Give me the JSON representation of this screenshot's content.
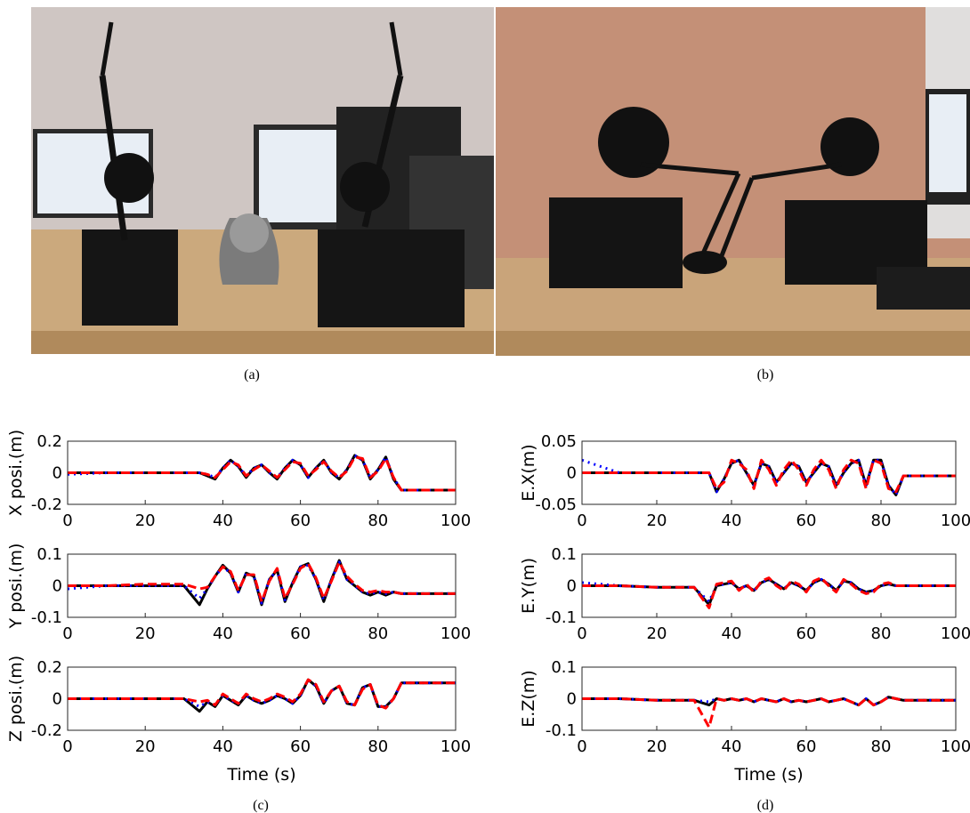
{
  "photos": [
    {
      "caption": "(a)"
    },
    {
      "caption": "(b)"
    }
  ],
  "panel_captions": [
    "(c)",
    "(d)"
  ],
  "chart_data": [
    {
      "type": "line",
      "ylabel": "X posi.(m)",
      "xlim": [
        0,
        100
      ],
      "xticks": [
        0,
        20,
        40,
        60,
        80,
        100
      ],
      "ylim": [
        -0.2,
        0.2
      ],
      "yticks": [
        -0.2,
        0,
        0.2
      ],
      "x": [
        0,
        10,
        20,
        30,
        34,
        36,
        38,
        40,
        42,
        44,
        46,
        48,
        50,
        52,
        54,
        56,
        58,
        60,
        62,
        64,
        66,
        68,
        70,
        72,
        74,
        76,
        78,
        80,
        82,
        84,
        86,
        90,
        100
      ],
      "series": [
        {
          "color": "#000000",
          "values": [
            0,
            0,
            0,
            0,
            0,
            -0.02,
            -0.04,
            0.03,
            0.08,
            0.04,
            -0.03,
            0.03,
            0.05,
            0,
            -0.04,
            0.03,
            0.08,
            0.05,
            -0.03,
            0.03,
            0.08,
            0,
            -0.04,
            0.02,
            0.11,
            0.08,
            -0.04,
            0.02,
            0.1,
            -0.04,
            -0.11,
            -0.11,
            -0.11
          ]
        },
        {
          "color": "#0000ff",
          "values": [
            -0.01,
            0,
            0,
            0,
            0,
            -0.01,
            -0.03,
            0.03,
            0.08,
            0.04,
            -0.02,
            0.03,
            0.05,
            0,
            -0.03,
            0.03,
            0.08,
            0.05,
            -0.03,
            0.03,
            0.08,
            0,
            -0.03,
            0.02,
            0.11,
            0.08,
            -0.03,
            0.02,
            0.1,
            -0.03,
            -0.11,
            -0.11,
            -0.11
          ]
        },
        {
          "color": "#ff0000",
          "values": [
            0,
            0,
            0,
            0,
            0,
            -0.01,
            -0.03,
            0.02,
            0.07,
            0.05,
            -0.02,
            0.02,
            0.05,
            0.01,
            -0.03,
            0.02,
            0.07,
            0.06,
            -0.02,
            0.02,
            0.07,
            0.01,
            -0.03,
            0.01,
            0.1,
            0.09,
            -0.03,
            0.01,
            0.09,
            -0.03,
            -0.11,
            -0.11,
            -0.11
          ]
        }
      ]
    },
    {
      "type": "line",
      "ylabel": "Y posi.(m)",
      "xlim": [
        0,
        100
      ],
      "xticks": [
        0,
        20,
        40,
        60,
        80,
        100
      ],
      "ylim": [
        -0.1,
        0.1
      ],
      "yticks": [
        -0.1,
        0,
        0.1
      ],
      "x": [
        0,
        10,
        20,
        30,
        34,
        36,
        38,
        40,
        42,
        44,
        46,
        48,
        50,
        52,
        54,
        56,
        58,
        60,
        62,
        64,
        66,
        68,
        70,
        72,
        74,
        76,
        78,
        80,
        82,
        84,
        86,
        90,
        100
      ],
      "series": [
        {
          "color": "#000000",
          "values": [
            0,
            0,
            0,
            0,
            -0.06,
            -0.01,
            0.03,
            0.065,
            0.04,
            -0.02,
            0.04,
            0.03,
            -0.06,
            0.02,
            0.05,
            -0.05,
            0.01,
            0.06,
            0.07,
            0.02,
            -0.05,
            0.02,
            0.08,
            0.02,
            0,
            -0.02,
            -0.03,
            -0.02,
            -0.03,
            -0.02,
            -0.025,
            -0.025,
            -0.025
          ]
        },
        {
          "color": "#0000ff",
          "values": [
            -0.01,
            0,
            0,
            0,
            -0.04,
            -0.01,
            0.03,
            0.06,
            0.04,
            -0.02,
            0.04,
            0.03,
            -0.055,
            0.02,
            0.05,
            -0.045,
            0.01,
            0.06,
            0.065,
            0.02,
            -0.045,
            0.02,
            0.075,
            0.02,
            0,
            -0.02,
            -0.025,
            -0.02,
            -0.025,
            -0.02,
            -0.025,
            -0.025,
            -0.025
          ]
        },
        {
          "color": "#ff0000",
          "values": [
            0,
            0,
            0.005,
            0.005,
            -0.01,
            -0.005,
            0.03,
            0.06,
            0.045,
            -0.015,
            0.035,
            0.035,
            -0.05,
            0.015,
            0.055,
            -0.04,
            0.005,
            0.055,
            0.07,
            0.025,
            -0.04,
            0.015,
            0.075,
            0.03,
            0.005,
            -0.015,
            -0.02,
            -0.015,
            -0.02,
            -0.02,
            -0.025,
            -0.025,
            -0.025
          ]
        }
      ]
    },
    {
      "type": "line",
      "ylabel": "Z posi.(m)",
      "xlabel": "Time (s)",
      "xlim": [
        0,
        100
      ],
      "xticks": [
        0,
        20,
        40,
        60,
        80,
        100
      ],
      "ylim": [
        -0.2,
        0.2
      ],
      "yticks": [
        -0.2,
        0,
        0.2
      ],
      "x": [
        0,
        10,
        20,
        30,
        34,
        36,
        38,
        40,
        42,
        44,
        46,
        48,
        50,
        52,
        54,
        56,
        58,
        60,
        62,
        64,
        66,
        68,
        70,
        72,
        74,
        76,
        78,
        80,
        82,
        84,
        86,
        90,
        100
      ],
      "series": [
        {
          "color": "#000000",
          "values": [
            0,
            0,
            0,
            0,
            -0.08,
            -0.02,
            -0.05,
            0.02,
            -0.01,
            -0.04,
            0.02,
            -0.01,
            -0.03,
            -0.01,
            0.02,
            0,
            -0.03,
            0.02,
            0.12,
            0.08,
            -0.03,
            0.05,
            0.08,
            -0.03,
            -0.04,
            0.07,
            0.09,
            -0.05,
            -0.05,
            0,
            0.1,
            0.1,
            0.1
          ]
        },
        {
          "color": "#0000ff",
          "values": [
            0,
            0,
            0,
            0,
            -0.05,
            -0.02,
            -0.04,
            0.02,
            -0.01,
            -0.03,
            0.02,
            -0.01,
            -0.03,
            -0.01,
            0.02,
            0,
            -0.03,
            0.02,
            0.12,
            0.08,
            -0.03,
            0.05,
            0.08,
            -0.03,
            -0.04,
            0.07,
            0.09,
            -0.05,
            -0.05,
            0,
            0.1,
            0.1,
            0.1
          ]
        },
        {
          "color": "#ff0000",
          "values": [
            0,
            0,
            0,
            0,
            -0.02,
            -0.01,
            -0.04,
            0.03,
            0,
            -0.03,
            0.03,
            0,
            -0.02,
            0,
            0.03,
            0.01,
            -0.02,
            0.03,
            0.12,
            0.09,
            -0.02,
            0.05,
            0.08,
            -0.02,
            -0.04,
            0.06,
            0.09,
            -0.04,
            -0.06,
            0,
            0.1,
            0.1,
            0.1
          ]
        }
      ]
    },
    {
      "type": "line",
      "ylabel": "E.X(m)",
      "xlim": [
        0,
        100
      ],
      "xticks": [
        0,
        20,
        40,
        60,
        80,
        100
      ],
      "ylim": [
        -0.05,
        0.05
      ],
      "yticks": [
        -0.05,
        0,
        0.05
      ],
      "x": [
        0,
        10,
        20,
        30,
        34,
        36,
        38,
        40,
        42,
        44,
        46,
        48,
        50,
        52,
        54,
        56,
        58,
        60,
        62,
        64,
        66,
        68,
        70,
        72,
        74,
        76,
        78,
        80,
        82,
        84,
        86,
        90,
        100
      ],
      "series": [
        {
          "color": "#000000",
          "values": [
            0,
            0,
            0,
            0,
            0,
            -0.03,
            -0.01,
            0.015,
            0.02,
            0,
            -0.02,
            0.015,
            0.01,
            -0.015,
            0,
            0.015,
            0.01,
            -0.015,
            0,
            0.015,
            0.01,
            -0.02,
            0,
            0.015,
            0.02,
            -0.02,
            0.02,
            0.02,
            -0.02,
            -0.035,
            -0.005,
            -0.005,
            -0.005
          ]
        },
        {
          "color": "#0000ff",
          "values": [
            0.02,
            0,
            0,
            0,
            0,
            -0.03,
            -0.01,
            0.015,
            0.02,
            0,
            -0.02,
            0.015,
            0.01,
            -0.015,
            0,
            0.015,
            0.01,
            -0.015,
            0,
            0.015,
            0.01,
            -0.02,
            0,
            0.015,
            0.02,
            -0.02,
            0.02,
            0.02,
            -0.02,
            -0.035,
            -0.005,
            -0.005,
            -0.005
          ]
        },
        {
          "color": "#ff0000",
          "values": [
            0,
            0,
            0,
            0,
            0,
            -0.025,
            -0.015,
            0.02,
            0.015,
            0.005,
            -0.025,
            0.02,
            0.005,
            -0.02,
            0.005,
            0.02,
            0.005,
            -0.02,
            0.005,
            0.02,
            0.005,
            -0.025,
            0.005,
            0.02,
            0.015,
            -0.025,
            0.02,
            0.015,
            -0.025,
            -0.03,
            -0.005,
            -0.005,
            -0.005
          ]
        }
      ]
    },
    {
      "type": "line",
      "ylabel": "E.Y(m)",
      "xlim": [
        0,
        100
      ],
      "xticks": [
        0,
        20,
        40,
        60,
        80,
        100
      ],
      "ylim": [
        -0.1,
        0.1
      ],
      "yticks": [
        -0.1,
        0,
        0.1
      ],
      "x": [
        0,
        10,
        20,
        30,
        34,
        36,
        38,
        40,
        42,
        44,
        46,
        48,
        50,
        52,
        54,
        56,
        58,
        60,
        62,
        64,
        66,
        68,
        70,
        72,
        74,
        76,
        78,
        80,
        82,
        84,
        86,
        90,
        100
      ],
      "series": [
        {
          "color": "#000000",
          "values": [
            0,
            0,
            -0.005,
            -0.005,
            -0.06,
            0,
            0.005,
            0.01,
            -0.01,
            0,
            -0.015,
            0.01,
            0.02,
            0.005,
            -0.01,
            0.01,
            0,
            -0.015,
            0.01,
            0.02,
            0.005,
            -0.015,
            0.015,
            0.01,
            -0.01,
            -0.02,
            -0.015,
            0,
            0.005,
            0,
            0,
            0,
            0
          ]
        },
        {
          "color": "#0000ff",
          "values": [
            0.01,
            0,
            -0.005,
            -0.005,
            -0.05,
            0,
            0.005,
            0.01,
            -0.01,
            0,
            -0.015,
            0.01,
            0.02,
            0.005,
            -0.01,
            0.01,
            0,
            -0.015,
            0.01,
            0.02,
            0.005,
            -0.015,
            0.015,
            0.01,
            -0.01,
            -0.02,
            -0.015,
            0,
            0.005,
            0,
            0,
            0,
            0
          ]
        },
        {
          "color": "#ff0000",
          "values": [
            0,
            0,
            -0.005,
            -0.005,
            -0.07,
            0.005,
            0.01,
            0.015,
            -0.015,
            0.005,
            -0.02,
            0.015,
            0.025,
            0,
            -0.015,
            0.015,
            0.005,
            -0.02,
            0.015,
            0.025,
            0,
            -0.02,
            0.02,
            0.005,
            -0.015,
            -0.025,
            -0.02,
            0.005,
            0.01,
            0,
            0,
            0,
            0
          ]
        }
      ]
    },
    {
      "type": "line",
      "ylabel": "E.Z(m)",
      "xlabel": "Time (s)",
      "xlim": [
        0,
        100
      ],
      "xticks": [
        0,
        20,
        40,
        60,
        80,
        100
      ],
      "ylim": [
        -0.1,
        0.1
      ],
      "yticks": [
        -0.1,
        0,
        0.1
      ],
      "x": [
        0,
        10,
        20,
        30,
        34,
        36,
        38,
        40,
        42,
        44,
        46,
        48,
        50,
        52,
        54,
        56,
        58,
        60,
        62,
        64,
        66,
        68,
        70,
        72,
        74,
        76,
        78,
        80,
        82,
        84,
        86,
        90,
        100
      ],
      "series": [
        {
          "color": "#000000",
          "values": [
            0,
            0,
            -0.005,
            -0.005,
            -0.02,
            0,
            -0.005,
            0,
            -0.005,
            0,
            -0.01,
            0,
            -0.005,
            -0.01,
            0,
            -0.01,
            -0.005,
            -0.01,
            -0.005,
            0,
            -0.01,
            -0.005,
            0,
            -0.01,
            -0.02,
            0,
            -0.02,
            -0.01,
            0.005,
            0,
            -0.005,
            -0.005,
            -0.005
          ]
        },
        {
          "color": "#0000ff",
          "values": [
            0,
            0,
            -0.005,
            -0.005,
            -0.01,
            0,
            -0.005,
            0,
            -0.005,
            0,
            -0.01,
            0,
            -0.005,
            -0.01,
            0,
            -0.01,
            -0.005,
            -0.01,
            -0.005,
            0,
            -0.01,
            -0.005,
            0,
            -0.01,
            -0.02,
            0,
            -0.02,
            -0.01,
            0.005,
            0,
            -0.005,
            -0.005,
            -0.005
          ]
        },
        {
          "color": "#ff0000",
          "values": [
            0,
            0,
            -0.005,
            -0.005,
            -0.09,
            0,
            -0.005,
            0,
            -0.005,
            0,
            -0.01,
            0,
            -0.005,
            -0.01,
            0,
            -0.01,
            -0.005,
            -0.01,
            -0.005,
            0,
            -0.01,
            -0.005,
            0,
            -0.01,
            -0.02,
            0,
            -0.02,
            -0.01,
            0.005,
            0,
            -0.005,
            -0.005,
            -0.005
          ]
        }
      ]
    }
  ]
}
